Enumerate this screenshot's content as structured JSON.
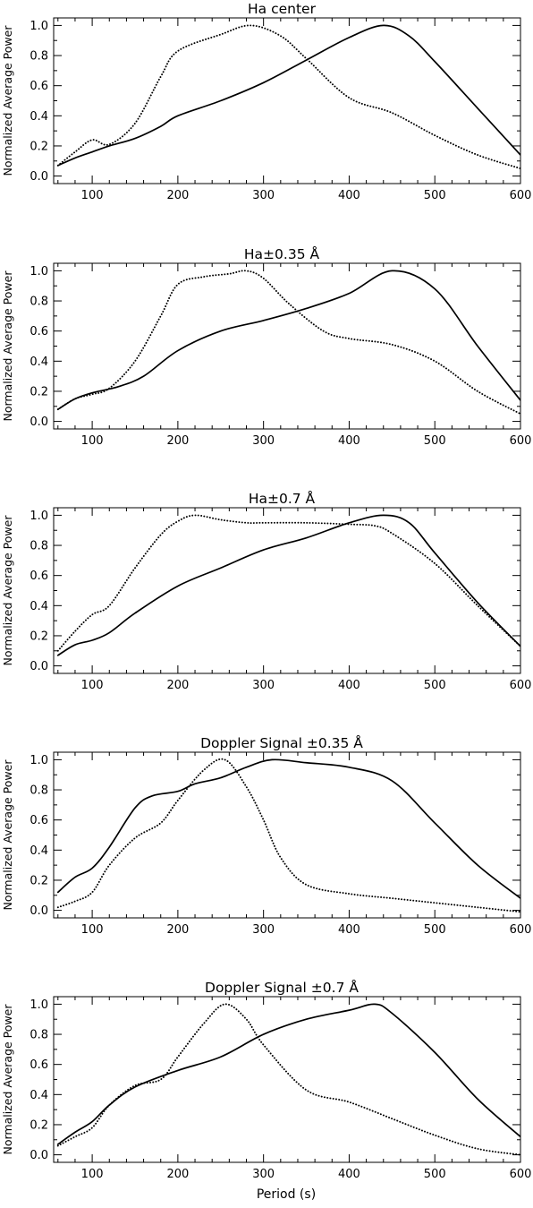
{
  "figure": {
    "xlabel": "Period (s)"
  },
  "chart_data": [
    {
      "type": "line",
      "title": "Ha center",
      "ylabel": "Normalized Average Power",
      "xlim": [
        55,
        600
      ],
      "ylim": [
        -0.05,
        1.05
      ],
      "xticks": [
        100,
        200,
        300,
        400,
        500,
        600
      ],
      "yticks": [
        0.0,
        0.2,
        0.4,
        0.6,
        0.8,
        1.0
      ],
      "ytick_labels": [
        "0.0",
        "0.2",
        "0.4",
        "0.6",
        "0.8",
        "1.0"
      ],
      "series": [
        {
          "style": "solid",
          "x": [
            60,
            80,
            100,
            120,
            150,
            180,
            200,
            250,
            300,
            350,
            400,
            440,
            470,
            500,
            550,
            600
          ],
          "y": [
            0.07,
            0.12,
            0.16,
            0.2,
            0.25,
            0.33,
            0.4,
            0.5,
            0.62,
            0.77,
            0.92,
            1.0,
            0.93,
            0.76,
            0.45,
            0.14
          ]
        },
        {
          "style": "dotted",
          "x": [
            60,
            80,
            100,
            120,
            150,
            180,
            200,
            250,
            285,
            320,
            350,
            400,
            450,
            500,
            550,
            600
          ],
          "y": [
            0.07,
            0.16,
            0.24,
            0.21,
            0.35,
            0.66,
            0.83,
            0.94,
            1.0,
            0.93,
            0.78,
            0.52,
            0.42,
            0.27,
            0.14,
            0.05
          ]
        }
      ]
    },
    {
      "type": "line",
      "title": "Ha±0.35 Å",
      "ylabel": "Normalized Average Power",
      "xlim": [
        55,
        600
      ],
      "ylim": [
        -0.05,
        1.05
      ],
      "xticks": [
        100,
        200,
        300,
        400,
        500,
        600
      ],
      "yticks": [
        0.0,
        0.2,
        0.4,
        0.6,
        0.8,
        1.0
      ],
      "ytick_labels": [
        "0.0",
        "0.2",
        "0.4",
        "0.6",
        "0.8",
        "1.0"
      ],
      "series": [
        {
          "style": "solid",
          "x": [
            60,
            80,
            100,
            130,
            160,
            200,
            250,
            300,
            350,
            400,
            450,
            500,
            550,
            600
          ],
          "y": [
            0.08,
            0.15,
            0.19,
            0.23,
            0.3,
            0.47,
            0.6,
            0.67,
            0.75,
            0.85,
            1.0,
            0.88,
            0.5,
            0.14
          ]
        },
        {
          "style": "dotted",
          "x": [
            60,
            80,
            100,
            120,
            150,
            180,
            200,
            230,
            260,
            280,
            300,
            330,
            370,
            400,
            450,
            500,
            550,
            600
          ],
          "y": [
            0.08,
            0.15,
            0.18,
            0.22,
            0.4,
            0.7,
            0.91,
            0.96,
            0.98,
            1.0,
            0.95,
            0.78,
            0.6,
            0.55,
            0.51,
            0.4,
            0.2,
            0.05
          ]
        }
      ]
    },
    {
      "type": "line",
      "title": "Ha±0.7 Å",
      "ylabel": "Normalized Average Power",
      "xlim": [
        55,
        600
      ],
      "ylim": [
        -0.05,
        1.05
      ],
      "xticks": [
        100,
        200,
        300,
        400,
        500,
        600
      ],
      "yticks": [
        0.0,
        0.2,
        0.4,
        0.6,
        0.8,
        1.0
      ],
      "ytick_labels": [
        "0.0",
        "0.2",
        "0.4",
        "0.6",
        "0.8",
        "1.0"
      ],
      "series": [
        {
          "style": "solid",
          "x": [
            60,
            80,
            100,
            120,
            150,
            200,
            250,
            300,
            350,
            400,
            440,
            470,
            500,
            550,
            600
          ],
          "y": [
            0.07,
            0.14,
            0.17,
            0.22,
            0.35,
            0.53,
            0.65,
            0.77,
            0.85,
            0.95,
            1.0,
            0.95,
            0.75,
            0.42,
            0.13
          ]
        },
        {
          "style": "dotted",
          "x": [
            60,
            80,
            100,
            120,
            150,
            180,
            200,
            220,
            250,
            280,
            300,
            350,
            400,
            430,
            450,
            500,
            550,
            600
          ],
          "y": [
            0.1,
            0.23,
            0.34,
            0.4,
            0.65,
            0.87,
            0.96,
            1.0,
            0.97,
            0.95,
            0.95,
            0.95,
            0.94,
            0.93,
            0.88,
            0.68,
            0.4,
            0.13
          ]
        }
      ]
    },
    {
      "type": "line",
      "title": "Doppler Signal ±0.35 Å",
      "ylabel": "Normalized Average Power",
      "xlim": [
        55,
        600
      ],
      "ylim": [
        -0.05,
        1.05
      ],
      "xticks": [
        100,
        200,
        300,
        400,
        500,
        600
      ],
      "yticks": [
        0.0,
        0.2,
        0.4,
        0.6,
        0.8,
        1.0
      ],
      "ytick_labels": [
        "0.0",
        "0.2",
        "0.4",
        "0.6",
        "0.8",
        "1.0"
      ],
      "series": [
        {
          "style": "solid",
          "x": [
            60,
            80,
            100,
            120,
            150,
            170,
            200,
            220,
            250,
            280,
            310,
            350,
            400,
            450,
            500,
            550,
            600
          ],
          "y": [
            0.12,
            0.22,
            0.28,
            0.42,
            0.68,
            0.76,
            0.79,
            0.84,
            0.88,
            0.95,
            1.0,
            0.98,
            0.95,
            0.86,
            0.58,
            0.3,
            0.08
          ]
        },
        {
          "style": "dotted",
          "x": [
            60,
            80,
            100,
            120,
            150,
            180,
            200,
            230,
            255,
            280,
            300,
            320,
            350,
            400,
            450,
            500,
            550,
            600
          ],
          "y": [
            0.02,
            0.06,
            0.12,
            0.3,
            0.48,
            0.58,
            0.73,
            0.93,
            1.0,
            0.82,
            0.6,
            0.35,
            0.17,
            0.11,
            0.08,
            0.05,
            0.02,
            -0.01
          ]
        }
      ]
    },
    {
      "type": "line",
      "title": "Doppler Signal ±0.7 Å",
      "ylabel": "Normalized Average Power",
      "xlim": [
        55,
        600
      ],
      "ylim": [
        -0.05,
        1.05
      ],
      "xticks": [
        100,
        200,
        300,
        400,
        500,
        600
      ],
      "yticks": [
        0.0,
        0.2,
        0.4,
        0.6,
        0.8,
        1.0
      ],
      "ytick_labels": [
        "0.0",
        "0.2",
        "0.4",
        "0.6",
        "0.8",
        "1.0"
      ],
      "series": [
        {
          "style": "solid",
          "x": [
            60,
            80,
            100,
            120,
            150,
            200,
            250,
            300,
            350,
            400,
            430,
            450,
            500,
            550,
            600
          ],
          "y": [
            0.07,
            0.15,
            0.22,
            0.33,
            0.45,
            0.56,
            0.65,
            0.8,
            0.9,
            0.96,
            1.0,
            0.94,
            0.68,
            0.37,
            0.12
          ]
        },
        {
          "style": "dotted",
          "x": [
            60,
            80,
            100,
            120,
            150,
            180,
            200,
            230,
            255,
            280,
            300,
            350,
            400,
            450,
            500,
            550,
            600
          ],
          "y": [
            0.06,
            0.12,
            0.18,
            0.33,
            0.46,
            0.5,
            0.65,
            0.87,
            1.0,
            0.9,
            0.73,
            0.43,
            0.35,
            0.24,
            0.13,
            0.04,
            0.0
          ]
        }
      ]
    }
  ]
}
